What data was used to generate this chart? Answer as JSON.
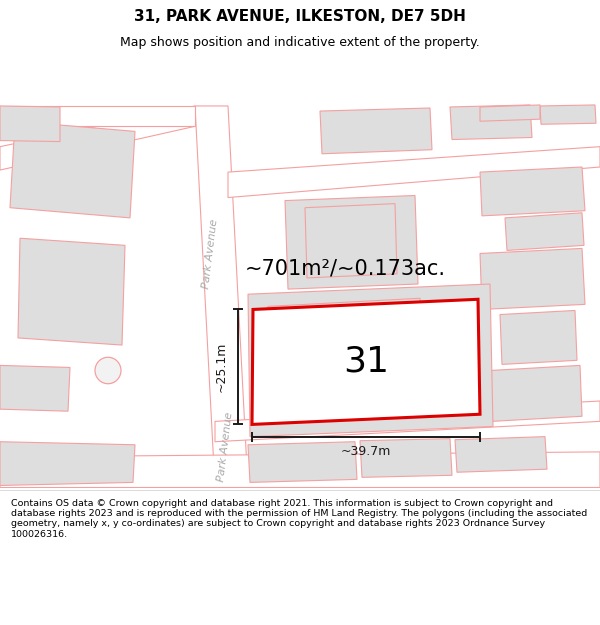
{
  "title": "31, PARK AVENUE, ILKESTON, DE7 5DH",
  "subtitle": "Map shows position and indicative extent of the property.",
  "footer": "Contains OS data © Crown copyright and database right 2021. This information is subject to Crown copyright and database rights 2023 and is reproduced with the permission of HM Land Registry. The polygons (including the associated geometry, namely x, y co-ordinates) are subject to Crown copyright and database rights 2023 Ordnance Survey 100026316.",
  "map_bg": "#f2f2f2",
  "road_fill": "#ffffff",
  "road_edge": "#f4a0a0",
  "building_fill": "#dedede",
  "building_edge": "#f4a0a0",
  "plot_edge": "#dd0000",
  "plot_fill": "#ffffff",
  "dim_color": "#1a1a1a",
  "street_color": "#aaaaaa",
  "area_text": "~701m²/~0.173ac.",
  "label_31": "31",
  "dim_w": "~39.7m",
  "dim_h": "~25.1m",
  "street_label": "Park Avenue",
  "title_fs": 11,
  "subtitle_fs": 9,
  "footer_fs": 6.8,
  "area_fs": 15,
  "num_fs": 26,
  "dim_fs": 9,
  "street_fs": 8
}
